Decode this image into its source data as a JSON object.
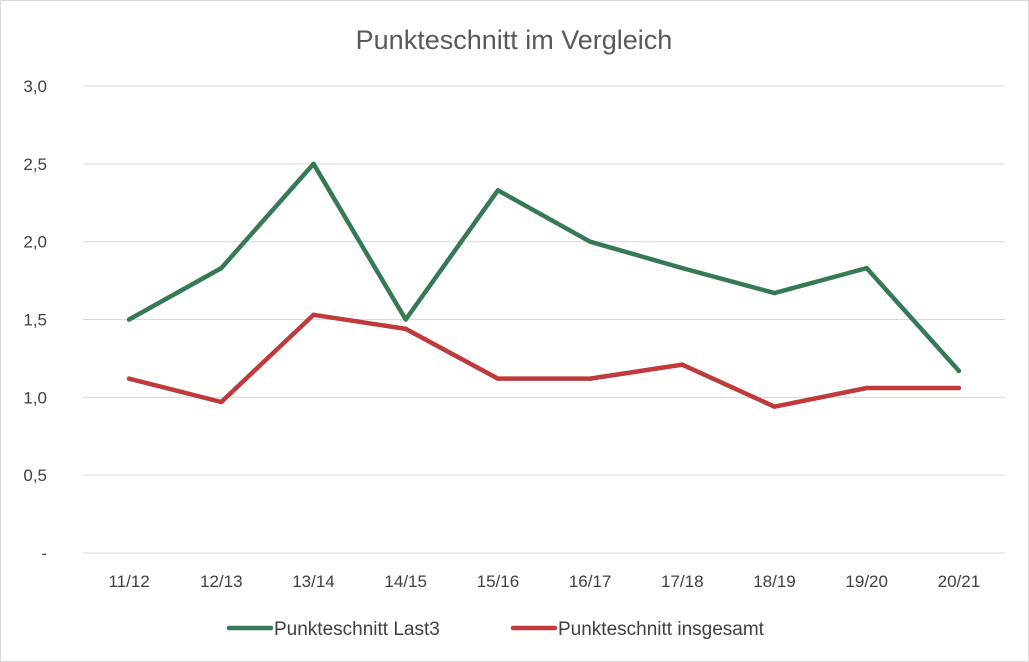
{
  "chart_data": {
    "type": "line",
    "title": "Punkteschnitt im Vergleich",
    "xlabel": "",
    "ylabel": "",
    "categories": [
      "11/12",
      "12/13",
      "13/14",
      "14/15",
      "15/16",
      "16/17",
      "17/18",
      "18/19",
      "19/20",
      "20/21"
    ],
    "ylim": [
      0,
      3
    ],
    "yticks": [
      0,
      0.5,
      1.0,
      1.5,
      2.0,
      2.5,
      3.0
    ],
    "ytick_labels": [
      "-",
      "0,5",
      "1,0",
      "1,5",
      "2,0",
      "2,5",
      "3,0"
    ],
    "grid": true,
    "legend_position": "bottom",
    "series": [
      {
        "name": "Punkteschnitt Last3",
        "color": "#357a55",
        "values": [
          1.5,
          1.83,
          2.5,
          1.5,
          2.33,
          2.0,
          1.83,
          1.67,
          1.83,
          1.17
        ]
      },
      {
        "name": "Punkteschnitt insgesamt",
        "color": "#c0393b",
        "values": [
          1.12,
          0.97,
          1.53,
          1.44,
          1.12,
          1.12,
          1.21,
          0.94,
          1.06,
          1.06
        ]
      }
    ]
  }
}
